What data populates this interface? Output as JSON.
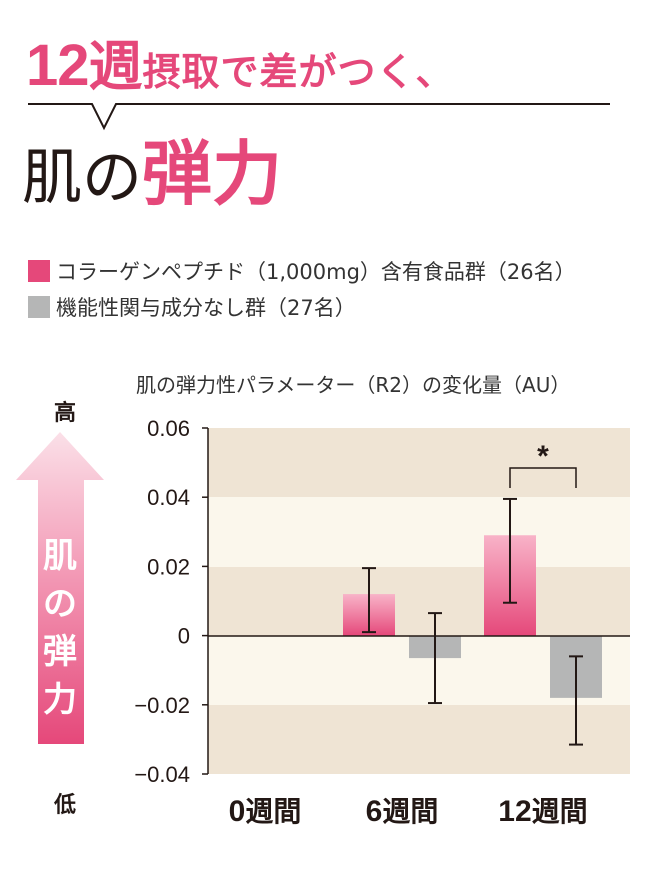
{
  "headline": {
    "num": "12",
    "week": "週",
    "rest": "摂取で差がつく、"
  },
  "title": {
    "part1": "肌の",
    "part2": "弾力"
  },
  "legend": [
    {
      "label": "コラーゲンペプチド（1,000mg）含有食品群（26名）",
      "color": "#e5487a"
    },
    {
      "label": "機能性関与成分なし群（27名）",
      "color": "#b5b6b6"
    }
  ],
  "axis_arrow": {
    "high": "高",
    "low": "低",
    "label": [
      "肌",
      "の",
      "弾",
      "力"
    ]
  },
  "chart_data": {
    "type": "bar",
    "title": "肌の弾力性パラメーター（R2）の変化量（AU）",
    "categories": [
      "0週間",
      "6週間",
      "12週間"
    ],
    "yticks": [
      "0.06",
      "0.04",
      "0.02",
      "0",
      "−0.02",
      "−0.04"
    ],
    "ylim": [
      -0.04,
      0.06
    ],
    "series": [
      {
        "color": "#e5487a",
        "values": [
          null,
          0.012,
          0.029
        ],
        "err_low": [
          null,
          0.001,
          0.0095
        ],
        "err_high": [
          null,
          0.0195,
          0.0395
        ]
      },
      {
        "color": "#b5b6b6",
        "values": [
          null,
          -0.0065,
          -0.018
        ],
        "err_low": [
          null,
          -0.0195,
          -0.0315
        ],
        "err_high": [
          null,
          0.0065,
          -0.006
        ]
      }
    ],
    "significance": {
      "category": "12週間",
      "mark": "*"
    }
  }
}
